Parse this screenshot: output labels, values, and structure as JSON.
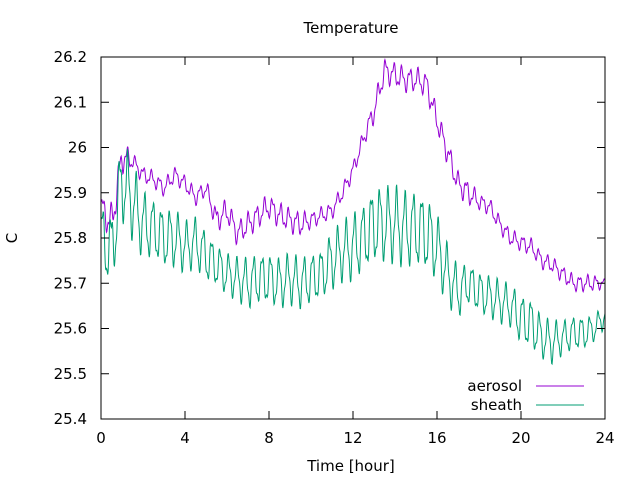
{
  "chart_data": {
    "type": "line",
    "title": "Temperature",
    "xlabel": "Time [hour]",
    "ylabel": "C",
    "xlim": [
      0,
      24
    ],
    "ylim": [
      25.4,
      26.2
    ],
    "xticks": [
      0,
      4,
      8,
      12,
      16,
      20,
      24
    ],
    "xtick_labels": [
      "0",
      "4",
      "8",
      "12",
      "16",
      "20",
      "24"
    ],
    "yticks": [
      25.4,
      25.5,
      25.6,
      25.7,
      25.8,
      25.9,
      26.0,
      26.1,
      26.2
    ],
    "ytick_labels": [
      "25.4",
      "25.5",
      "25.6",
      "25.7",
      "25.8",
      "25.9",
      "26",
      "26.1",
      "26.2"
    ],
    "grid": false,
    "legend_position": "bottom-right",
    "series": [
      {
        "name": "aerosol",
        "color": "#9400d3",
        "x": [
          0,
          0.5,
          1,
          1.5,
          2,
          2.5,
          3,
          3.5,
          4,
          4.5,
          5,
          5.5,
          6,
          6.5,
          7,
          7.5,
          8,
          8.5,
          9,
          9.5,
          10,
          10.5,
          11,
          11.5,
          12,
          12.5,
          13,
          13.5,
          14,
          14.5,
          15,
          15.5,
          16,
          16.5,
          17,
          17.5,
          18,
          18.5,
          19,
          19.5,
          20,
          20.5,
          21,
          21.5,
          22,
          22.5,
          23,
          23.5,
          24
        ],
        "values": [
          25.87,
          25.83,
          25.98,
          25.97,
          25.94,
          25.93,
          25.91,
          25.94,
          25.92,
          25.89,
          25.91,
          25.84,
          25.86,
          25.81,
          25.83,
          25.85,
          25.87,
          25.85,
          25.84,
          25.83,
          25.84,
          25.85,
          25.86,
          25.9,
          25.95,
          26.02,
          26.08,
          26.17,
          26.16,
          26.15,
          26.15,
          26.14,
          26.06,
          25.99,
          25.92,
          25.9,
          25.88,
          25.87,
          25.83,
          25.8,
          25.79,
          25.78,
          25.75,
          25.74,
          25.72,
          25.7,
          25.7,
          25.7,
          25.7
        ],
        "amp": [
          0.03,
          0.05,
          0.04,
          0.02,
          0.02,
          0.02,
          0.02,
          0.02,
          0.02,
          0.02,
          0.02,
          0.03,
          0.03,
          0.03,
          0.03,
          0.03,
          0.03,
          0.03,
          0.03,
          0.03,
          0.02,
          0.02,
          0.02,
          0.02,
          0.02,
          0.02,
          0.03,
          0.03,
          0.03,
          0.03,
          0.03,
          0.03,
          0.03,
          0.03,
          0.03,
          0.03,
          0.02,
          0.02,
          0.02,
          0.02,
          0.02,
          0.02,
          0.02,
          0.02,
          0.02,
          0.02,
          0.02,
          0.02,
          0.01
        ]
      },
      {
        "name": "sheath",
        "color": "#009e73",
        "x": [
          0,
          0.5,
          1,
          1.5,
          2,
          2.5,
          3,
          3.5,
          4,
          4.5,
          5,
          5.5,
          6,
          6.5,
          7,
          7.5,
          8,
          8.5,
          9,
          9.5,
          10,
          10.5,
          11,
          11.5,
          12,
          12.5,
          13,
          13.5,
          14,
          14.5,
          15,
          15.5,
          16,
          16.5,
          17,
          17.5,
          18,
          18.5,
          19,
          19.5,
          20,
          20.5,
          21,
          21.5,
          22,
          22.5,
          23,
          23.5,
          24
        ],
        "values": [
          25.8,
          25.77,
          25.93,
          25.88,
          25.83,
          25.82,
          25.8,
          25.8,
          25.78,
          25.79,
          25.76,
          25.74,
          25.72,
          25.71,
          25.7,
          25.71,
          25.71,
          25.7,
          25.71,
          25.7,
          25.71,
          25.72,
          25.75,
          25.77,
          25.78,
          25.8,
          25.83,
          25.83,
          25.83,
          25.82,
          25.82,
          25.81,
          25.78,
          25.72,
          25.68,
          25.7,
          25.68,
          25.67,
          25.66,
          25.65,
          25.62,
          25.61,
          25.58,
          25.57,
          25.58,
          25.59,
          25.59,
          25.6,
          25.63
        ],
        "amp": [
          0.08,
          0.09,
          0.1,
          0.09,
          0.08,
          0.07,
          0.07,
          0.07,
          0.06,
          0.06,
          0.06,
          0.05,
          0.05,
          0.05,
          0.06,
          0.06,
          0.06,
          0.06,
          0.06,
          0.06,
          0.06,
          0.06,
          0.07,
          0.07,
          0.08,
          0.08,
          0.09,
          0.09,
          0.09,
          0.09,
          0.09,
          0.09,
          0.08,
          0.07,
          0.06,
          0.05,
          0.05,
          0.05,
          0.05,
          0.05,
          0.06,
          0.06,
          0.05,
          0.05,
          0.04,
          0.04,
          0.04,
          0.03,
          0.03
        ]
      }
    ]
  }
}
